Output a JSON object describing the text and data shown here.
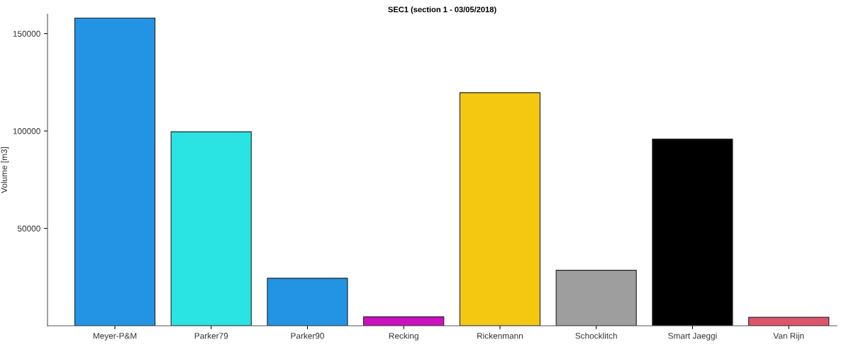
{
  "chart_data": {
    "type": "bar",
    "title": "SEC1 (section 1 - 03/05/2018)",
    "ylabel": "Volume [m3]",
    "categories": [
      "Meyer-P&M",
      "Parker79",
      "Parker90",
      "Recking",
      "Rickenmann",
      "Schocklitch",
      "Smart Jaeggi",
      "Van Rijn"
    ],
    "values": [
      158000,
      99600,
      24400,
      4600,
      119700,
      28500,
      95900,
      4300
    ],
    "colors": [
      "#2394e3",
      "#2ae3e3",
      "#2394e3",
      "#cc0fbf",
      "#f4c811",
      "#9e9e9e",
      "#000000",
      "#e0546a"
    ],
    "ylim": [
      0,
      160000
    ],
    "yticks": [
      50000,
      100000,
      150000
    ],
    "grid": false,
    "legend": false
  }
}
